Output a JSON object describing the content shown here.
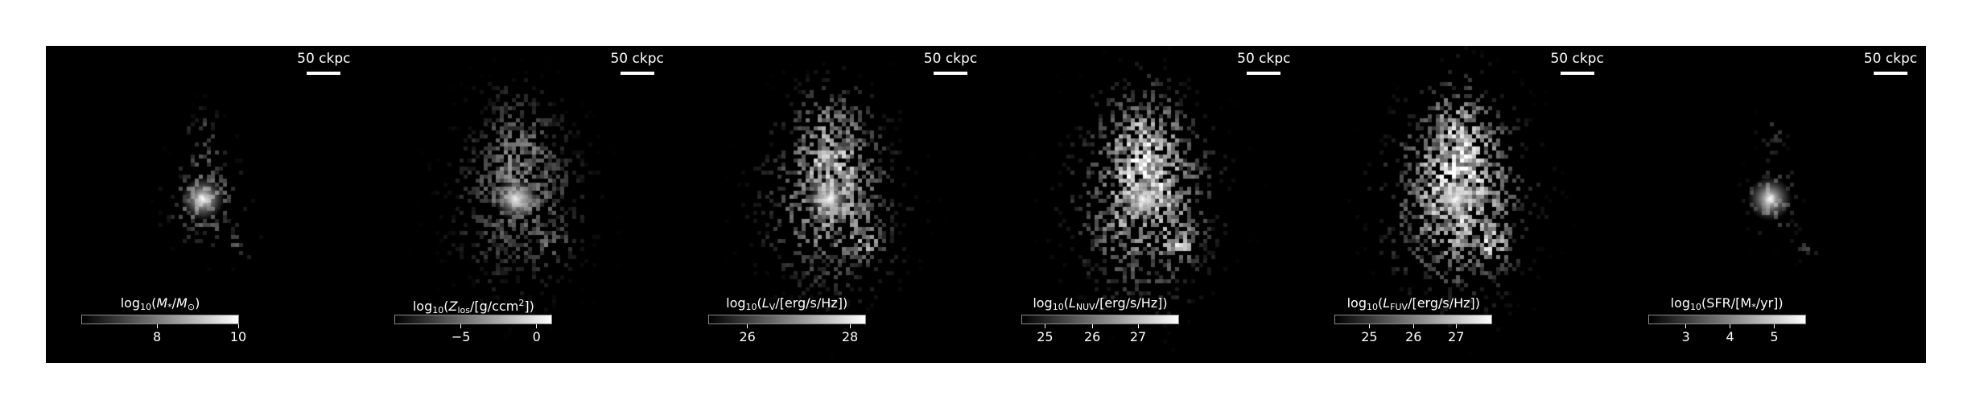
{
  "panels": [
    {
      "scale_label": "50 ckpc",
      "quantity_html": "log<sub>10</sub>(<i>M</i><sub>*</sub>/<i>M</i><sub>⊙</sub>)",
      "ticks": [
        {
          "label": "8",
          "frac": 0.48
        },
        {
          "label": "10",
          "frac": 0.995
        }
      ],
      "spread": 0.55,
      "brightness": 0.55,
      "core": 1.0,
      "density": 0.55
    },
    {
      "scale_label": "50 ckpc",
      "quantity_html": "log<sub>10</sub>(<i>Z</i><sub>los</sub>/[g/ccm<sup>2</sup>])",
      "ticks": [
        {
          "label": "−5",
          "frac": 0.42
        },
        {
          "label": "0",
          "frac": 0.9
        }
      ],
      "spread": 1.0,
      "brightness": 0.45,
      "core": 0.9,
      "density": 0.75
    },
    {
      "scale_label": "50 ckpc",
      "quantity_html": "log<sub>10</sub>(<i>L</i><sub>V</sub>/[erg/s/Hz])",
      "ticks": [
        {
          "label": "26",
          "frac": 0.25
        },
        {
          "label": "28",
          "frac": 0.9
        }
      ],
      "spread": 1.0,
      "brightness": 0.7,
      "core": 1.0,
      "density": 0.8
    },
    {
      "scale_label": "50 ckpc",
      "quantity_html": "log<sub>10</sub>(<i>L</i><sub>NUV</sub>/[erg/s/Hz])",
      "ticks": [
        {
          "label": "25",
          "frac": 0.15
        },
        {
          "label": "26",
          "frac": 0.45
        },
        {
          "label": "27",
          "frac": 0.74
        }
      ],
      "spread": 1.05,
      "brightness": 0.8,
      "core": 1.0,
      "density": 0.85
    },
    {
      "scale_label": "50 ckpc",
      "quantity_html": "log<sub>10</sub>(<i>L</i><sub>FUV</sub>/[erg/s/Hz])",
      "ticks": [
        {
          "label": "25",
          "frac": 0.22
        },
        {
          "label": "26",
          "frac": 0.5
        },
        {
          "label": "27",
          "frac": 0.77
        }
      ],
      "spread": 1.05,
      "brightness": 0.85,
      "core": 1.0,
      "density": 0.85
    },
    {
      "scale_label": "50 ckpc",
      "quantity_html": "log<sub>10</sub>(SFR/[M<sub>*</sub>/yr])",
      "ticks": [
        {
          "label": "3",
          "frac": 0.24
        },
        {
          "label": "4",
          "frac": 0.52
        },
        {
          "label": "5",
          "frac": 0.8
        }
      ],
      "spread": 0.4,
      "brightness": 0.5,
      "core": 1.0,
      "density": 0.45
    }
  ]
}
